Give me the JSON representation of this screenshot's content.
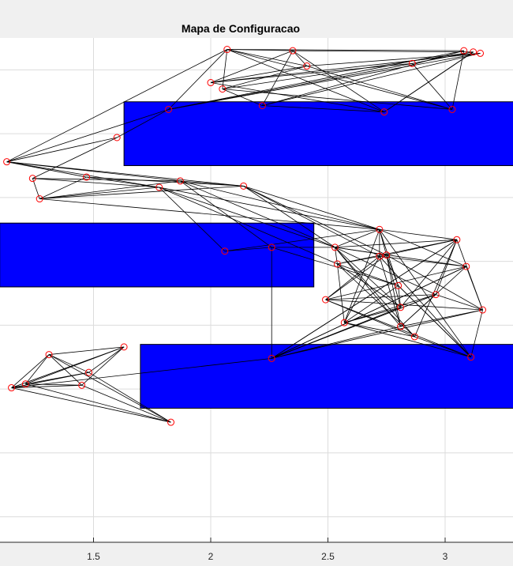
{
  "chart_data": {
    "type": "scatter",
    "title": "Mapa de Configuracao",
    "xlabel": "",
    "ylabel": "",
    "xlim": [
      1.1,
      3.28
    ],
    "ylim": [
      -0.2,
      3.75
    ],
    "grid": true,
    "colors": {
      "obstacle": "#0000ff",
      "node_edge": "#ff0000",
      "edge": "#000000",
      "background": "#ffffff",
      "figure": "#f0f0f0",
      "grid": "#dcdcdc"
    },
    "x_ticks": [
      {
        "value": 1.5,
        "label": "1.5"
      },
      {
        "value": 2,
        "label": "2"
      },
      {
        "value": 2.5,
        "label": "2.5"
      },
      {
        "value": 3,
        "label": "3"
      }
    ],
    "y_grid": [
      0,
      0.5,
      1.0,
      1.5,
      2.0,
      2.5,
      3.0,
      3.5
    ],
    "obstacles": [
      {
        "x": [
          1.63,
          3.3
        ],
        "y": [
          2.75,
          3.25
        ]
      },
      {
        "x": [
          1.1,
          2.44
        ],
        "y": [
          1.8,
          2.3
        ]
      },
      {
        "x": [
          1.7,
          3.3
        ],
        "y": [
          0.85,
          1.35
        ]
      }
    ],
    "nodes": [
      {
        "x": 2.07,
        "y": 3.66
      },
      {
        "x": 2.35,
        "y": 3.65
      },
      {
        "x": 3.08,
        "y": 3.65
      },
      {
        "x": 3.12,
        "y": 3.64
      },
      {
        "x": 3.15,
        "y": 3.63
      },
      {
        "x": 2.41,
        "y": 3.53
      },
      {
        "x": 2.86,
        "y": 3.55
      },
      {
        "x": 2.0,
        "y": 3.4
      },
      {
        "x": 2.05,
        "y": 3.35
      },
      {
        "x": 2.22,
        "y": 3.22
      },
      {
        "x": 1.82,
        "y": 3.19
      },
      {
        "x": 2.74,
        "y": 3.17
      },
      {
        "x": 3.03,
        "y": 3.19
      },
      {
        "x": 1.6,
        "y": 2.97
      },
      {
        "x": 1.13,
        "y": 2.78
      },
      {
        "x": 1.24,
        "y": 2.65
      },
      {
        "x": 1.47,
        "y": 2.66
      },
      {
        "x": 1.87,
        "y": 2.63
      },
      {
        "x": 1.78,
        "y": 2.58
      },
      {
        "x": 2.14,
        "y": 2.59
      },
      {
        "x": 1.27,
        "y": 2.49
      },
      {
        "x": 2.72,
        "y": 2.25
      },
      {
        "x": 2.53,
        "y": 2.11
      },
      {
        "x": 2.06,
        "y": 2.08
      },
      {
        "x": 2.26,
        "y": 2.11
      },
      {
        "x": 2.75,
        "y": 2.05
      },
      {
        "x": 3.05,
        "y": 2.17
      },
      {
        "x": 2.72,
        "y": 2.04
      },
      {
        "x": 2.54,
        "y": 1.98
      },
      {
        "x": 3.09,
        "y": 1.96
      },
      {
        "x": 2.8,
        "y": 1.81
      },
      {
        "x": 2.96,
        "y": 1.74
      },
      {
        "x": 2.49,
        "y": 1.7
      },
      {
        "x": 2.81,
        "y": 1.64
      },
      {
        "x": 3.16,
        "y": 1.62
      },
      {
        "x": 2.57,
        "y": 1.52
      },
      {
        "x": 2.81,
        "y": 1.49
      },
      {
        "x": 2.87,
        "y": 1.41
      },
      {
        "x": 2.26,
        "y": 1.24
      },
      {
        "x": 3.11,
        "y": 1.25
      },
      {
        "x": 1.63,
        "y": 1.33
      },
      {
        "x": 1.48,
        "y": 1.13
      },
      {
        "x": 1.45,
        "y": 1.03
      },
      {
        "x": 1.31,
        "y": 1.27
      },
      {
        "x": 1.21,
        "y": 1.04
      },
      {
        "x": 1.15,
        "y": 1.01
      },
      {
        "x": 1.83,
        "y": 0.74
      }
    ],
    "edges": [
      [
        0,
        1
      ],
      [
        0,
        2
      ],
      [
        0,
        5
      ],
      [
        0,
        8
      ],
      [
        0,
        11
      ],
      [
        0,
        12
      ],
      [
        0,
        10
      ],
      [
        1,
        3
      ],
      [
        1,
        5
      ],
      [
        1,
        7
      ],
      [
        1,
        9
      ],
      [
        1,
        11
      ],
      [
        2,
        9
      ],
      [
        2,
        10
      ],
      [
        3,
        6
      ],
      [
        3,
        8
      ],
      [
        3,
        11
      ],
      [
        4,
        7
      ],
      [
        4,
        5
      ],
      [
        4,
        9
      ],
      [
        5,
        12
      ],
      [
        5,
        8
      ],
      [
        6,
        7
      ],
      [
        6,
        10
      ],
      [
        7,
        11
      ],
      [
        8,
        12
      ],
      [
        9,
        11
      ],
      [
        10,
        4
      ],
      [
        12,
        2
      ],
      [
        11,
        3
      ],
      [
        6,
        12
      ],
      [
        8,
        9
      ],
      [
        7,
        5
      ],
      [
        13,
        14
      ],
      [
        13,
        15
      ],
      [
        14,
        16
      ],
      [
        14,
        17
      ],
      [
        14,
        18
      ],
      [
        14,
        19
      ],
      [
        15,
        17
      ],
      [
        15,
        18
      ],
      [
        15,
        20
      ],
      [
        16,
        18
      ],
      [
        16,
        19
      ],
      [
        16,
        20
      ],
      [
        17,
        19
      ],
      [
        17,
        21
      ],
      [
        17,
        22
      ],
      [
        17,
        24
      ],
      [
        18,
        21
      ],
      [
        18,
        22
      ],
      [
        18,
        23
      ],
      [
        19,
        21
      ],
      [
        19,
        22
      ],
      [
        19,
        25
      ],
      [
        20,
        18
      ],
      [
        20,
        19
      ],
      [
        20,
        21
      ],
      [
        20,
        17
      ],
      [
        23,
        21
      ],
      [
        23,
        24
      ],
      [
        24,
        22
      ],
      [
        14,
        0
      ],
      [
        14,
        10
      ],
      [
        13,
        10
      ],
      [
        21,
        22
      ],
      [
        21,
        26
      ],
      [
        21,
        27
      ],
      [
        21,
        29
      ],
      [
        21,
        30
      ],
      [
        21,
        33
      ],
      [
        21,
        35
      ],
      [
        22,
        25
      ],
      [
        22,
        26
      ],
      [
        22,
        28
      ],
      [
        22,
        29
      ],
      [
        22,
        31
      ],
      [
        22,
        33
      ],
      [
        22,
        36
      ],
      [
        22,
        37
      ],
      [
        25,
        26
      ],
      [
        25,
        28
      ],
      [
        25,
        30
      ],
      [
        25,
        32
      ],
      [
        25,
        34
      ],
      [
        25,
        36
      ],
      [
        26,
        28
      ],
      [
        26,
        31
      ],
      [
        26,
        33
      ],
      [
        26,
        34
      ],
      [
        26,
        37
      ],
      [
        26,
        38
      ],
      [
        27,
        29
      ],
      [
        27,
        32
      ],
      [
        27,
        35
      ],
      [
        27,
        36
      ],
      [
        27,
        39
      ],
      [
        28,
        30
      ],
      [
        28,
        33
      ],
      [
        28,
        35
      ],
      [
        28,
        37
      ],
      [
        29,
        32
      ],
      [
        29,
        34
      ],
      [
        29,
        36
      ],
      [
        29,
        38
      ],
      [
        30,
        33
      ],
      [
        30,
        35
      ],
      [
        30,
        39
      ],
      [
        31,
        32
      ],
      [
        31,
        34
      ],
      [
        31,
        35
      ],
      [
        31,
        36
      ],
      [
        31,
        38
      ],
      [
        32,
        34
      ],
      [
        32,
        37
      ],
      [
        32,
        39
      ],
      [
        33,
        35
      ],
      [
        33,
        38
      ],
      [
        34,
        36
      ],
      [
        34,
        39
      ],
      [
        35,
        37
      ],
      [
        35,
        39
      ],
      [
        36,
        38
      ],
      [
        37,
        39
      ],
      [
        24,
        38
      ],
      [
        38,
        26
      ],
      [
        38,
        29
      ],
      [
        38,
        31
      ],
      [
        38,
        34
      ],
      [
        39,
        30
      ],
      [
        39,
        21
      ],
      [
        19,
        27
      ],
      [
        18,
        28
      ],
      [
        24,
        30
      ],
      [
        45,
        38
      ],
      [
        40,
        41
      ],
      [
        40,
        42
      ],
      [
        40,
        43
      ],
      [
        40,
        44
      ],
      [
        40,
        45
      ],
      [
        41,
        43
      ],
      [
        41,
        44
      ],
      [
        41,
        46
      ],
      [
        42,
        43
      ],
      [
        42,
        44
      ],
      [
        42,
        45
      ],
      [
        43,
        44
      ],
      [
        43,
        45
      ],
      [
        43,
        46
      ],
      [
        44,
        46
      ],
      [
        45,
        46
      ],
      [
        42,
        46
      ],
      [
        41,
        45
      ]
    ]
  }
}
